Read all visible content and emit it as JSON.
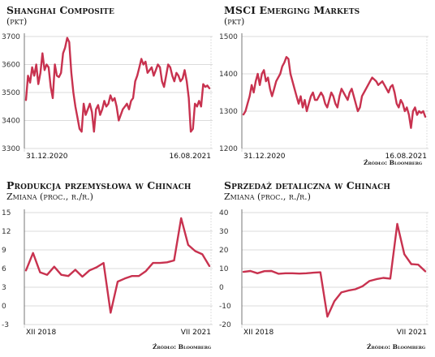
{
  "source_label": "Źródło: Bloomberg",
  "chart_data": [
    {
      "type": "line",
      "title": "Shanghai Composite",
      "subtitle": "(pkt)",
      "x_start_label": "31.12.2020",
      "x_end_label": "16.08.2021",
      "yticks": [
        3300,
        3400,
        3500,
        3600,
        3700
      ],
      "ylim": [
        3300,
        3700
      ],
      "grid": true,
      "color": "#c8324f",
      "series": [
        {
          "values": [
            3473,
            3560,
            3535,
            3590,
            3560,
            3600,
            3530,
            3570,
            3640,
            3580,
            3600,
            3590,
            3520,
            3480,
            3600,
            3560,
            3555,
            3570,
            3640,
            3660,
            3695,
            3680,
            3570,
            3500,
            3450,
            3410,
            3370,
            3360,
            3460,
            3420,
            3440,
            3460,
            3430,
            3360,
            3440,
            3455,
            3420,
            3440,
            3470,
            3450,
            3460,
            3490,
            3470,
            3480,
            3450,
            3400,
            3420,
            3440,
            3450,
            3460,
            3440,
            3470,
            3480,
            3540,
            3560,
            3590,
            3620,
            3600,
            3610,
            3570,
            3580,
            3590,
            3560,
            3580,
            3600,
            3590,
            3540,
            3520,
            3560,
            3600,
            3590,
            3560,
            3540,
            3570,
            3560,
            3540,
            3550,
            3580,
            3540,
            3480,
            3360,
            3370,
            3460,
            3450,
            3470,
            3450,
            3530,
            3520,
            3525,
            3515
          ]
        }
      ]
    },
    {
      "type": "line",
      "title": "MSCI Emerging Markets",
      "subtitle": "(pkt)",
      "x_start_label": "31.12.2020",
      "x_end_label": "16.08.2021",
      "yticks": [
        1200,
        1300,
        1400,
        1500
      ],
      "ylim": [
        1200,
        1500
      ],
      "grid": true,
      "color": "#c8324f",
      "series": [
        {
          "values": [
            1291,
            1300,
            1320,
            1340,
            1370,
            1350,
            1380,
            1400,
            1370,
            1400,
            1410,
            1380,
            1390,
            1360,
            1340,
            1360,
            1380,
            1390,
            1400,
            1420,
            1430,
            1445,
            1440,
            1400,
            1380,
            1360,
            1340,
            1320,
            1340,
            1310,
            1330,
            1300,
            1320,
            1340,
            1350,
            1330,
            1330,
            1340,
            1350,
            1340,
            1320,
            1310,
            1330,
            1350,
            1340,
            1320,
            1310,
            1340,
            1360,
            1350,
            1340,
            1330,
            1350,
            1360,
            1340,
            1320,
            1300,
            1310,
            1340,
            1350,
            1360,
            1370,
            1380,
            1390,
            1385,
            1380,
            1370,
            1375,
            1380,
            1370,
            1360,
            1350,
            1365,
            1370,
            1350,
            1320,
            1310,
            1330,
            1320,
            1300,
            1310,
            1290,
            1255,
            1300,
            1310,
            1290,
            1300,
            1295,
            1300,
            1285
          ]
        }
      ]
    },
    {
      "type": "line",
      "title": "Produkcja przemysłowa w Chinach",
      "subtitle": "Zmiana (proc., r./r.)",
      "x_start_label": "XII 2018",
      "x_end_label": "VII 2021",
      "yticks": [
        -3,
        0,
        3,
        6,
        9,
        12,
        15
      ],
      "ylim": [
        -3,
        15
      ],
      "grid": true,
      "color": "#c8324f",
      "series": [
        {
          "values": [
            5.7,
            8.5,
            5.4,
            5.0,
            6.3,
            5.0,
            4.8,
            5.8,
            4.7,
            5.7,
            6.2,
            6.9,
            -1.1,
            3.9,
            4.4,
            4.8,
            4.8,
            5.6,
            6.9,
            6.9,
            7.0,
            7.3,
            14.1,
            9.8,
            8.8,
            8.3,
            6.4
          ]
        }
      ]
    },
    {
      "type": "line",
      "title": "Sprzedaż detaliczna w Chinach",
      "subtitle": "Zmiana (proc., r./r.)",
      "x_start_label": "XII 2018",
      "x_end_label": "VII 2021",
      "yticks": [
        -20,
        -10,
        0,
        10,
        20,
        30,
        40
      ],
      "ylim": [
        -20,
        40
      ],
      "grid": true,
      "color": "#c8324f",
      "series": [
        {
          "values": [
            8.2,
            8.7,
            7.5,
            8.6,
            8.7,
            7.2,
            7.5,
            7.5,
            7.3,
            7.5,
            7.8,
            8.0,
            -15.8,
            -7.5,
            -2.8,
            -1.8,
            -1.1,
            0.5,
            3.3,
            4.3,
            5.0,
            4.6,
            33.9,
            17.7,
            12.4,
            12.1,
            8.5
          ]
        }
      ]
    }
  ]
}
